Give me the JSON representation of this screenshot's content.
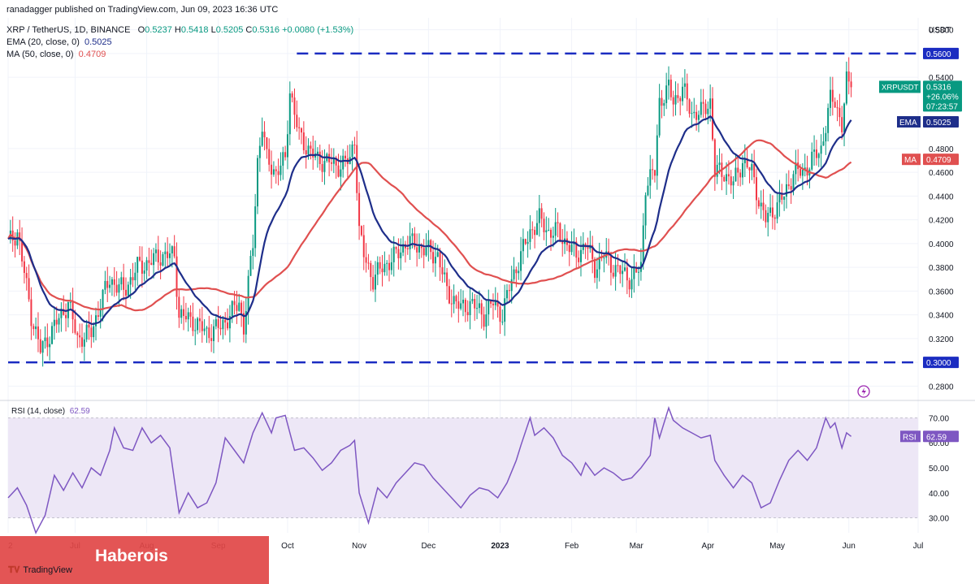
{
  "header": {
    "publisher": "ranadagger published on TradingView.com, Jun 09, 2023 16:36 UTC",
    "symbol": "XRP / TetherUS, 1D, BINANCE",
    "ohlc": {
      "o_label": "O",
      "o": "0.5237",
      "h_label": "H",
      "h": "0.5418",
      "l_label": "L",
      "l": "0.5205",
      "c_label": "C",
      "c": "0.5316",
      "change": "+0.0080 (+1.53%)"
    },
    "ema_label": "EMA (20, close, 0)",
    "ema_value": "0.5025",
    "ma_label": "MA (50, close, 0)",
    "ma_value": "0.4709",
    "rsi_label": "RSI (14, close)",
    "rsi_value": "62.59"
  },
  "branding": {
    "watermark": "Haberois",
    "logo": "TradingView",
    "logo_icon": "tradingview-logo-icon"
  },
  "colors": {
    "up": "#089981",
    "down": "#f23645",
    "ema": "#1e2e8a",
    "ma": "#e05050",
    "rsi": "#7e57c2",
    "level": "#1b2cc1",
    "grid": "#f0f3fa",
    "rsi_band": "#ede7f6"
  },
  "chart_data": [
    {
      "type": "candlestick",
      "title": "XRP / TetherUS, 1D, BINANCE",
      "currency": "USDT",
      "ylim": [
        0.27,
        0.59
      ],
      "y_ticks": [
        "0.5800",
        "0.5600",
        "0.5400",
        "0.4800",
        "0.4600",
        "0.4400",
        "0.4200",
        "0.4000",
        "0.3800",
        "0.3600",
        "0.3400",
        "0.3200",
        "0.3000",
        "0.2800"
      ],
      "x_ticks": [
        "2",
        "Jul",
        "Aug",
        "Sep",
        "Oct",
        "Nov",
        "Dec",
        "2023",
        "Feb",
        "Mar",
        "Apr",
        "May",
        "Jun",
        "Jul"
      ],
      "x_tick_days": [
        0,
        29,
        60,
        91,
        121,
        152,
        182,
        213,
        244,
        272,
        303,
        333,
        364,
        394
      ],
      "x_range_days": [
        0,
        394
      ],
      "first_date": "2022-06-02",
      "horizontal_levels": [
        0.56,
        0.3
      ],
      "close_path": [
        [
          0,
          0.4
        ],
        [
          4,
          0.41
        ],
        [
          10,
          0.34
        ],
        [
          14,
          0.31
        ],
        [
          20,
          0.33
        ],
        [
          26,
          0.35
        ],
        [
          30,
          0.32
        ],
        [
          36,
          0.325
        ],
        [
          40,
          0.35
        ],
        [
          44,
          0.37
        ],
        [
          50,
          0.36
        ],
        [
          56,
          0.38
        ],
        [
          62,
          0.385
        ],
        [
          66,
          0.39
        ],
        [
          72,
          0.39
        ],
        [
          74,
          0.34
        ],
        [
          80,
          0.335
        ],
        [
          86,
          0.325
        ],
        [
          92,
          0.33
        ],
        [
          96,
          0.34
        ],
        [
          100,
          0.35
        ],
        [
          102,
          0.33
        ],
        [
          106,
          0.4
        ],
        [
          108,
          0.47
        ],
        [
          110,
          0.5
        ],
        [
          112,
          0.47
        ],
        [
          116,
          0.46
        ],
        [
          120,
          0.47
        ],
        [
          122,
          0.53
        ],
        [
          126,
          0.49
        ],
        [
          130,
          0.48
        ],
        [
          134,
          0.47
        ],
        [
          138,
          0.47
        ],
        [
          142,
          0.465
        ],
        [
          148,
          0.47
        ],
        [
          150,
          0.49
        ],
        [
          152,
          0.41
        ],
        [
          154,
          0.39
        ],
        [
          158,
          0.37
        ],
        [
          162,
          0.38
        ],
        [
          168,
          0.39
        ],
        [
          172,
          0.4
        ],
        [
          176,
          0.4
        ],
        [
          180,
          0.395
        ],
        [
          186,
          0.39
        ],
        [
          190,
          0.36
        ],
        [
          196,
          0.345
        ],
        [
          200,
          0.35
        ],
        [
          206,
          0.34
        ],
        [
          210,
          0.35
        ],
        [
          214,
          0.34
        ],
        [
          218,
          0.37
        ],
        [
          222,
          0.39
        ],
        [
          226,
          0.41
        ],
        [
          230,
          0.42
        ],
        [
          234,
          0.41
        ],
        [
          238,
          0.41
        ],
        [
          242,
          0.4
        ],
        [
          246,
          0.39
        ],
        [
          250,
          0.4
        ],
        [
          254,
          0.38
        ],
        [
          258,
          0.39
        ],
        [
          262,
          0.38
        ],
        [
          266,
          0.375
        ],
        [
          270,
          0.37
        ],
        [
          274,
          0.38
        ],
        [
          276,
          0.45
        ],
        [
          280,
          0.46
        ],
        [
          282,
          0.52
        ],
        [
          286,
          0.53
        ],
        [
          288,
          0.52
        ],
        [
          292,
          0.53
        ],
        [
          296,
          0.51
        ],
        [
          300,
          0.51
        ],
        [
          304,
          0.52
        ],
        [
          306,
          0.46
        ],
        [
          310,
          0.46
        ],
        [
          314,
          0.45
        ],
        [
          318,
          0.47
        ],
        [
          322,
          0.46
        ],
        [
          326,
          0.43
        ],
        [
          328,
          0.42
        ],
        [
          332,
          0.43
        ],
        [
          336,
          0.44
        ],
        [
          340,
          0.46
        ],
        [
          344,
          0.46
        ],
        [
          348,
          0.47
        ],
        [
          352,
          0.48
        ],
        [
          356,
          0.52
        ],
        [
          358,
          0.52
        ],
        [
          361,
          0.5
        ],
        [
          363,
          0.535
        ],
        [
          365,
          0.5316
        ]
      ],
      "current_price": "0.5316",
      "symbol_tag": "XRPUSDT",
      "change_tag": "+26.06%",
      "countdown_tag": "07:23:57",
      "ema_tag_label": "EMA",
      "ema_tag_value": "0.5025",
      "ma_tag_label": "MA",
      "ma_tag_value": "0.4709",
      "level_tag_upper": "0.5600",
      "level_tag_lower": "0.3000"
    },
    {
      "type": "line",
      "title": "RSI (14, close)",
      "ylim": [
        24,
        76
      ],
      "y_ticks": [
        "70.00",
        "60.00",
        "50.00",
        "40.00",
        "30.00"
      ],
      "band": [
        30,
        70
      ],
      "midline": 50,
      "series": [
        {
          "name": "RSI",
          "points": [
            [
              0,
              38
            ],
            [
              4,
              42
            ],
            [
              8,
              35
            ],
            [
              12,
              24
            ],
            [
              16,
              31
            ],
            [
              20,
              47
            ],
            [
              24,
              41
            ],
            [
              28,
              48
            ],
            [
              32,
              42
            ],
            [
              36,
              50
            ],
            [
              40,
              47
            ],
            [
              44,
              57
            ],
            [
              46,
              66
            ],
            [
              50,
              58
            ],
            [
              54,
              57
            ],
            [
              58,
              66
            ],
            [
              62,
              60
            ],
            [
              66,
              63
            ],
            [
              70,
              58
            ],
            [
              74,
              32
            ],
            [
              78,
              40
            ],
            [
              82,
              34
            ],
            [
              86,
              36
            ],
            [
              90,
              44
            ],
            [
              94,
              62
            ],
            [
              98,
              57
            ],
            [
              102,
              52
            ],
            [
              106,
              64
            ],
            [
              110,
              72
            ],
            [
              114,
              64
            ],
            [
              116,
              70
            ],
            [
              120,
              71
            ],
            [
              124,
              57
            ],
            [
              128,
              58
            ],
            [
              132,
              54
            ],
            [
              136,
              49
            ],
            [
              140,
              52
            ],
            [
              144,
              57
            ],
            [
              148,
              59
            ],
            [
              150,
              61
            ],
            [
              152,
              40
            ],
            [
              156,
              28
            ],
            [
              160,
              42
            ],
            [
              164,
              38
            ],
            [
              168,
              44
            ],
            [
              172,
              48
            ],
            [
              176,
              52
            ],
            [
              180,
              51
            ],
            [
              184,
              46
            ],
            [
              188,
              42
            ],
            [
              192,
              38
            ],
            [
              196,
              34
            ],
            [
              200,
              39
            ],
            [
              204,
              42
            ],
            [
              208,
              41
            ],
            [
              212,
              38
            ],
            [
              216,
              44
            ],
            [
              220,
              53
            ],
            [
              222,
              59
            ],
            [
              226,
              70
            ],
            [
              228,
              63
            ],
            [
              232,
              66
            ],
            [
              236,
              62
            ],
            [
              240,
              55
            ],
            [
              244,
              52
            ],
            [
              248,
              47
            ],
            [
              250,
              52
            ],
            [
              254,
              47
            ],
            [
              258,
              50
            ],
            [
              262,
              48
            ],
            [
              266,
              45
            ],
            [
              270,
              46
            ],
            [
              274,
              50
            ],
            [
              278,
              55
            ],
            [
              280,
              70
            ],
            [
              282,
              62
            ],
            [
              286,
              74
            ],
            [
              288,
              69
            ],
            [
              292,
              66
            ],
            [
              296,
              64
            ],
            [
              300,
              62
            ],
            [
              304,
              63
            ],
            [
              306,
              53
            ],
            [
              310,
              47
            ],
            [
              314,
              42
            ],
            [
              318,
              47
            ],
            [
              322,
              44
            ],
            [
              326,
              34
            ],
            [
              330,
              36
            ],
            [
              334,
              45
            ],
            [
              338,
              53
            ],
            [
              342,
              57
            ],
            [
              346,
              53
            ],
            [
              350,
              58
            ],
            [
              354,
              70
            ],
            [
              356,
              66
            ],
            [
              358,
              68
            ],
            [
              361,
              58
            ],
            [
              363,
              64
            ],
            [
              365,
              62.59
            ]
          ]
        }
      ],
      "value_tag_label": "RSI",
      "value_tag_value": "62.59"
    }
  ]
}
